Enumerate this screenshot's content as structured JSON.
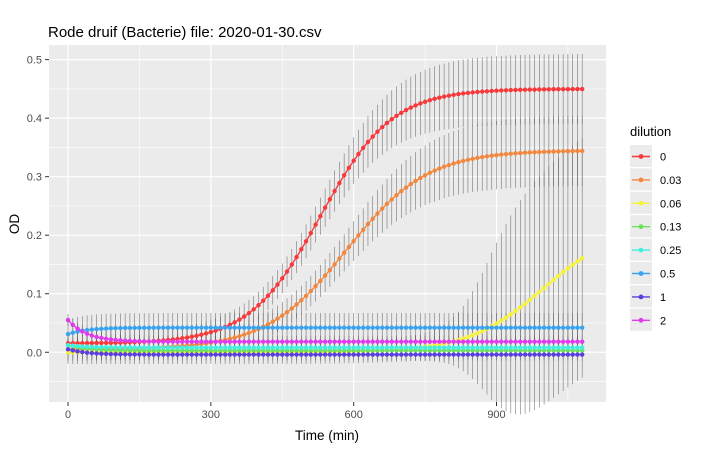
{
  "chart_data": {
    "type": "line",
    "title": "Rode druif (Bacterie) file: 2020-01-30.csv",
    "xlabel": "Time (min)",
    "ylabel": "OD",
    "xlim": [
      -40,
      1130
    ],
    "ylim": [
      -0.085,
      0.525
    ],
    "x_ticks": [
      0,
      300,
      600,
      900
    ],
    "y_ticks": [
      0.0,
      0.1,
      0.2,
      0.3,
      0.4,
      0.5
    ],
    "y_tick_labels": [
      "0.0",
      "0.1",
      "0.2",
      "0.3",
      "0.4",
      "0.5"
    ],
    "x_tick_labels": [
      "0",
      "300",
      "600",
      "900"
    ],
    "grid": true,
    "background": "#ebebeb",
    "legend": {
      "title": "dilution",
      "position": "right"
    },
    "sampling": {
      "start": 0,
      "end": 1080,
      "interval": 10
    },
    "series": [
      {
        "name": "0",
        "color": "#f8393c",
        "curve": {
          "kind": "logistic",
          "baseline": 0.015,
          "top": 0.45,
          "midpoint": 530,
          "rate": 75
        },
        "error": {
          "kind": "growing",
          "base": 0.02,
          "max": 0.06,
          "midpoint": 600,
          "rate": 80
        }
      },
      {
        "name": "0.03",
        "color": "#f2883f",
        "curve": {
          "kind": "logistic",
          "baseline": 0.005,
          "top": 0.345,
          "midpoint": 585,
          "rate": 85
        },
        "error": {
          "kind": "growing",
          "base": 0.02,
          "max": 0.06,
          "midpoint": 650,
          "rate": 80
        }
      },
      {
        "name": "0.06",
        "color": "#f6f234",
        "curve": {
          "kind": "logistic",
          "baseline": 0.0,
          "top": 0.22,
          "midpoint": 1000,
          "rate": 80
        },
        "error": {
          "kind": "growing",
          "base": 0.02,
          "max": 0.205,
          "midpoint": 880,
          "rate": 35
        }
      },
      {
        "name": "0.13",
        "color": "#6de05c",
        "curve": {
          "kind": "flat",
          "start": 0.012,
          "level": 0.003
        },
        "error": {
          "kind": "constant",
          "base": 0.01
        }
      },
      {
        "name": "0.25",
        "color": "#3ff0e0",
        "curve": {
          "kind": "flat",
          "start": 0.012,
          "level": 0.008
        },
        "error": {
          "kind": "constant",
          "base": 0.01
        }
      },
      {
        "name": "0.5",
        "color": "#3aa3f0",
        "curve": {
          "kind": "flat",
          "start": 0.031,
          "level": 0.042
        },
        "error": {
          "kind": "constant",
          "base": 0.025
        }
      },
      {
        "name": "1",
        "color": "#5b3ee0",
        "curve": {
          "kind": "flat",
          "start": 0.005,
          "level": -0.004
        },
        "error": {
          "kind": "constant",
          "base": 0.01
        }
      },
      {
        "name": "2",
        "color": "#e03aec",
        "curve": {
          "kind": "flat",
          "start": 0.055,
          "level": 0.018
        },
        "error": {
          "kind": "constant",
          "base": 0.01
        }
      }
    ]
  }
}
